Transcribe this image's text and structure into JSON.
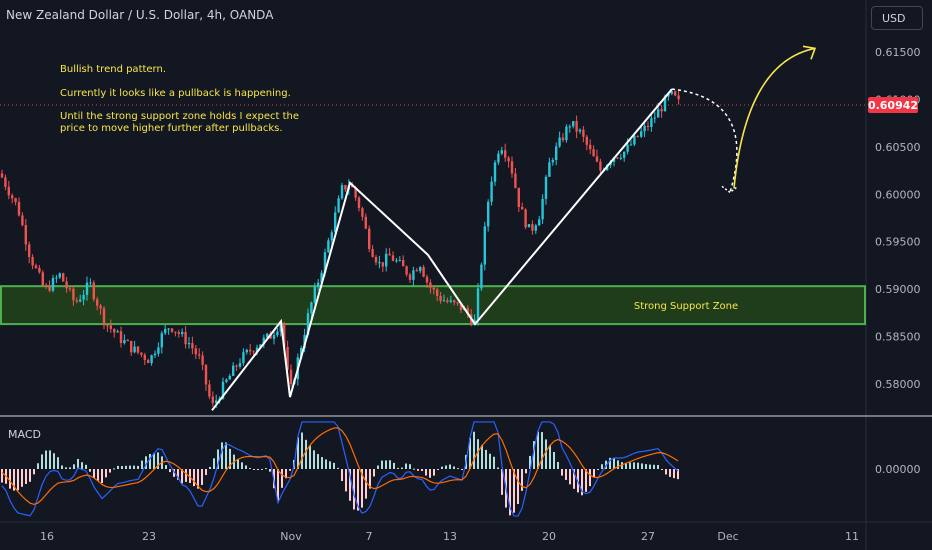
{
  "header": {
    "title": "New Zealand Dollar / U.S. Dollar, 4h, OANDA",
    "currency": "USD"
  },
  "notes": {
    "line1": "Bullish trend pattern.",
    "line2": "Currently it looks like a pullback is happening.",
    "line3a": "Until the strong support zone holds I expect the",
    "line3b": "price to move higher further after pullbacks."
  },
  "zone_label": "Strong Support Zone",
  "macd_label": "MACD",
  "colors": {
    "background": "#131722",
    "up_candle": "#26c6da",
    "down_candle": "#ef5350",
    "support_fill": "#1f3d1a",
    "support_border": "#4caf50",
    "annotation_text": "#f7e64a",
    "projection_arrow": "#f7e64a",
    "price_badge": "#f23645",
    "macd_line": "#2962ff",
    "signal_line": "#ff6d00"
  },
  "chart_data": {
    "type": "candlestick",
    "symbol": "NZDUSD",
    "interval": "4h",
    "ylim": [
      0.5766,
      0.6205
    ],
    "y_ticks": [
      "0.61500",
      "0.61000",
      "0.60500",
      "0.60000",
      "0.59500",
      "0.59000",
      "0.58500",
      "0.58000"
    ],
    "y_tick_values": [
      0.615,
      0.61,
      0.605,
      0.6,
      0.595,
      0.59,
      0.585,
      0.58
    ],
    "x_ticks": [
      "16",
      "23",
      "Nov",
      "7",
      "13",
      "20",
      "27",
      "Dec",
      "11"
    ],
    "current_price": "0.60942",
    "current_price_value": 0.60942,
    "support_zone": [
      0.5863,
      0.5903
    ],
    "path_points": [
      [
        0,
        0.6022
      ],
      [
        18,
        0.5985
      ],
      [
        30,
        0.5935
      ],
      [
        45,
        0.5898
      ],
      [
        60,
        0.5915
      ],
      [
        75,
        0.5885
      ],
      [
        90,
        0.5905
      ],
      [
        105,
        0.5865
      ],
      [
        120,
        0.5848
      ],
      [
        135,
        0.5835
      ],
      [
        150,
        0.5825
      ],
      [
        160,
        0.5848
      ],
      [
        170,
        0.5862
      ],
      [
        180,
        0.5852
      ],
      [
        190,
        0.5842
      ],
      [
        200,
        0.5825
      ],
      [
        212,
        0.5775
      ],
      [
        225,
        0.58
      ],
      [
        240,
        0.5825
      ],
      [
        255,
        0.584
      ],
      [
        270,
        0.585
      ],
      [
        281,
        0.5866
      ],
      [
        290,
        0.579
      ],
      [
        300,
        0.5835
      ],
      [
        310,
        0.588
      ],
      [
        320,
        0.5915
      ],
      [
        332,
        0.5965
      ],
      [
        342,
        0.6005
      ],
      [
        350,
        0.6012
      ],
      [
        360,
        0.5985
      ],
      [
        370,
        0.5945
      ],
      [
        380,
        0.5925
      ],
      [
        390,
        0.5935
      ],
      [
        400,
        0.5925
      ],
      [
        410,
        0.5915
      ],
      [
        420,
        0.5928
      ],
      [
        428,
        0.5905
      ],
      [
        438,
        0.5892
      ],
      [
        450,
        0.5885
      ],
      [
        462,
        0.588
      ],
      [
        475,
        0.5865
      ],
      [
        482,
        0.5935
      ],
      [
        490,
        0.601
      ],
      [
        500,
        0.6055
      ],
      [
        510,
        0.6035
      ],
      [
        520,
        0.5985
      ],
      [
        530,
        0.596
      ],
      [
        540,
        0.598
      ],
      [
        550,
        0.6035
      ],
      [
        560,
        0.6055
      ],
      [
        570,
        0.6075
      ],
      [
        580,
        0.6065
      ],
      [
        590,
        0.6045
      ],
      [
        600,
        0.6025
      ],
      [
        612,
        0.604
      ],
      [
        625,
        0.6045
      ],
      [
        637,
        0.606
      ],
      [
        650,
        0.6075
      ],
      [
        660,
        0.609
      ],
      [
        670,
        0.6105
      ],
      [
        676,
        0.61
      ],
      [
        680,
        0.6094
      ]
    ],
    "trend_lines": [
      [
        [
          212,
          0.5772
        ],
        [
          281,
          0.5866
        ],
        [
          290,
          0.5786
        ],
        [
          350,
          0.6012
        ],
        [
          428,
          0.5936
        ],
        [
          475,
          0.5863
        ],
        [
          672,
          0.6111
        ]
      ]
    ],
    "projection": {
      "pullback": [
        [
          672,
          0.6111
        ],
        [
          730,
          0.6002
        ]
      ],
      "continuation": [
        [
          730,
          0.6002
        ],
        [
          815,
          0.6154
        ]
      ]
    },
    "macd": {
      "range": [
        -0.0013,
        0.0013
      ],
      "zero_label": "0.00000"
    }
  }
}
